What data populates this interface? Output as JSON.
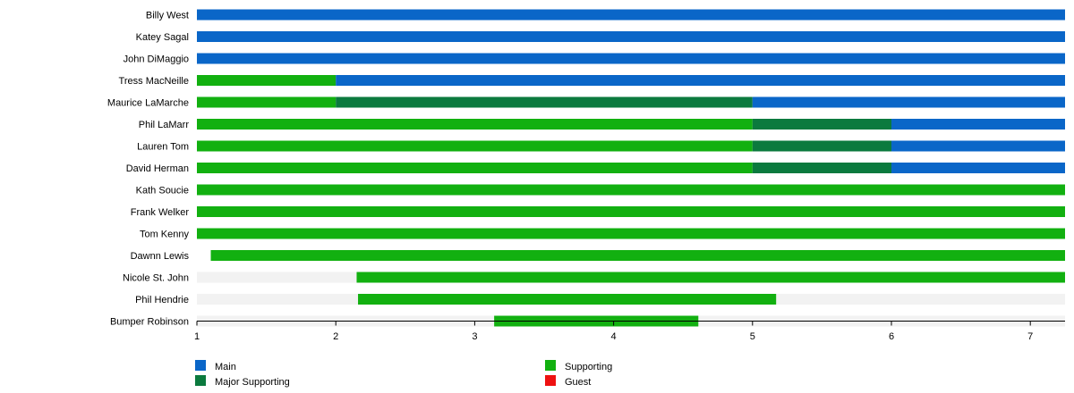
{
  "chart_data": {
    "type": "bar",
    "orientation": "horizontal",
    "stacked_timeline": true,
    "x_ticks": [
      1,
      2,
      3,
      4,
      5,
      6,
      7
    ],
    "xlim": [
      1,
      7.25
    ],
    "colors": {
      "Main": "#0a66c8",
      "Major Supporting": "#0b7a3e",
      "Supporting": "#12b010",
      "Guest": "#ee1111",
      "track": "#f2f2f2"
    },
    "legend": {
      "position": "bottom",
      "items": [
        "Main",
        "Major Supporting",
        "Supporting",
        "Guest"
      ]
    },
    "rows": [
      {
        "name": "Billy West",
        "track": [
          1,
          7.25
        ],
        "segments": [
          {
            "start": 1,
            "end": 7.25,
            "role": "Main"
          }
        ]
      },
      {
        "name": "Katey Sagal",
        "track": [
          1,
          7.25
        ],
        "segments": [
          {
            "start": 1,
            "end": 7.25,
            "role": "Main"
          }
        ]
      },
      {
        "name": "John DiMaggio",
        "track": [
          1,
          7.25
        ],
        "segments": [
          {
            "start": 1,
            "end": 7.25,
            "role": "Main"
          }
        ]
      },
      {
        "name": "Tress MacNeille",
        "track": [
          1,
          7.25
        ],
        "segments": [
          {
            "start": 1,
            "end": 2,
            "role": "Supporting"
          },
          {
            "start": 2,
            "end": 7.25,
            "role": "Main"
          }
        ]
      },
      {
        "name": "Maurice LaMarche",
        "track": [
          1,
          7.25
        ],
        "segments": [
          {
            "start": 1,
            "end": 2,
            "role": "Supporting"
          },
          {
            "start": 2,
            "end": 5,
            "role": "Major Supporting"
          },
          {
            "start": 5,
            "end": 7.25,
            "role": "Main"
          }
        ]
      },
      {
        "name": "Phil LaMarr",
        "track": [
          1,
          7.25
        ],
        "segments": [
          {
            "start": 1,
            "end": 5,
            "role": "Supporting"
          },
          {
            "start": 5,
            "end": 6,
            "role": "Major Supporting"
          },
          {
            "start": 6,
            "end": 7.25,
            "role": "Main"
          }
        ]
      },
      {
        "name": "Lauren Tom",
        "track": [
          1,
          7.25
        ],
        "segments": [
          {
            "start": 1,
            "end": 5,
            "role": "Supporting"
          },
          {
            "start": 5,
            "end": 6,
            "role": "Major Supporting"
          },
          {
            "start": 6,
            "end": 7.25,
            "role": "Main"
          }
        ]
      },
      {
        "name": "David Herman",
        "track": [
          1,
          7.25
        ],
        "segments": [
          {
            "start": 1,
            "end": 5,
            "role": "Supporting"
          },
          {
            "start": 5,
            "end": 6,
            "role": "Major Supporting"
          },
          {
            "start": 6,
            "end": 7.25,
            "role": "Main"
          }
        ]
      },
      {
        "name": "Kath Soucie",
        "track": [
          1,
          7.25
        ],
        "segments": [
          {
            "start": 1,
            "end": 7.25,
            "role": "Supporting"
          }
        ]
      },
      {
        "name": "Frank Welker",
        "track": [
          1,
          7.25
        ],
        "segments": [
          {
            "start": 1,
            "end": 7.25,
            "role": "Supporting"
          }
        ]
      },
      {
        "name": "Tom Kenny",
        "track": [
          1,
          7.25
        ],
        "segments": [
          {
            "start": 1,
            "end": 7.25,
            "role": "Supporting"
          }
        ]
      },
      {
        "name": "Dawnn Lewis",
        "track": [
          1.1,
          7.25
        ],
        "segments": [
          {
            "start": 1.1,
            "end": 7.25,
            "role": "Supporting"
          }
        ]
      },
      {
        "name": "Nicole St. John",
        "track": [
          1,
          7.25
        ],
        "segments": [
          {
            "start": 2.15,
            "end": 7.25,
            "role": "Supporting"
          }
        ]
      },
      {
        "name": "Phil Hendrie",
        "track": [
          1,
          7.25
        ],
        "segments": [
          {
            "start": 2.16,
            "end": 5.17,
            "role": "Supporting"
          }
        ]
      },
      {
        "name": "Bumper Robinson",
        "track": [
          1,
          7.25
        ],
        "segments": [
          {
            "start": 3.14,
            "end": 4.61,
            "role": "Supporting"
          }
        ]
      }
    ]
  }
}
